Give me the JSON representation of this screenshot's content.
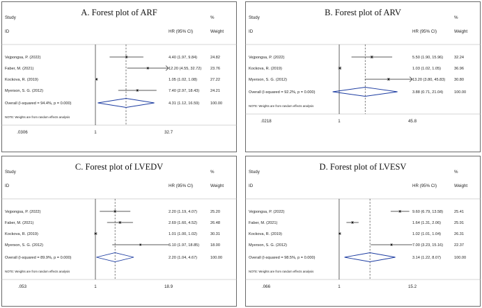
{
  "chart_data": [
    {
      "type": "forest",
      "title": "A. Forest plot of ARF",
      "study_header": "Study",
      "id_header": "ID",
      "ci_header": "HR (95% CI)",
      "pct_header": "%",
      "weight_header": "Weight",
      "note": "NOTE: Weights are from random effects analysis",
      "ticks": [
        ".0306",
        "1",
        "32.7"
      ],
      "xlim": [
        0.0306,
        32.7
      ],
      "studies": [
        {
          "label": "Vejpongsa, P. (2022)",
          "hr": 4.4,
          "lo": 1.97,
          "hi": 9.84,
          "ci_text": "4.40 (1.97, 9.84)",
          "weight": "24.82"
        },
        {
          "label": "Faber, M. (2021)",
          "hr": 12.2,
          "lo": 4.55,
          "hi": 32.72,
          "ci_text": "12.20 (4.55, 32.72)",
          "weight": "23.76"
        },
        {
          "label": "Kockova, R. (2019)",
          "hr": 1.05,
          "lo": 1.02,
          "hi": 1.08,
          "ci_text": "1.05 (1.02, 1.08)",
          "weight": "27.22"
        },
        {
          "label": "Myerson, S. G. (2012)",
          "hr": 7.4,
          "lo": 2.97,
          "hi": 18.43,
          "ci_text": "7.40 (2.97, 18.43)",
          "weight": "24.21"
        }
      ],
      "overall": {
        "label": "Overall  (I-squared = 94.4%, p = 0.000)",
        "hr": 4.31,
        "lo": 1.12,
        "hi": 16.59,
        "ci_text": "4.31 (1.12, 16.59)",
        "weight": "100.00"
      }
    },
    {
      "type": "forest",
      "title": "B. Forest plot of ARV",
      "study_header": "Study",
      "id_header": "ID",
      "ci_header": "HR (95% CI)",
      "pct_header": "%",
      "weight_header": "Weight",
      "note": "NOTE: Weights are from random effects analysis",
      "ticks": [
        ".0218",
        "1",
        "45.8"
      ],
      "xlim": [
        0.0218,
        45.8
      ],
      "studies": [
        {
          "label": "Vejpongsa, P. (2022)",
          "hr": 5.5,
          "lo": 1.9,
          "hi": 15.96,
          "ci_text": "5.50 (1.90, 15.96)",
          "weight": "32.24"
        },
        {
          "label": "Kockova, R. (2019)",
          "hr": 1.03,
          "lo": 1.02,
          "hi": 1.05,
          "ci_text": "1.03 (1.02, 1.05)",
          "weight": "36.96"
        },
        {
          "label": "Myerson, S. G. (2012)",
          "hr": 13.2,
          "lo": 3.8,
          "hi": 45.83,
          "ci_text": "13.20 (3.80, 45.83)",
          "weight": "30.80"
        }
      ],
      "overall": {
        "label": "Overall  (I-squared = 92.2%, p = 0.000)",
        "hr": 3.88,
        "lo": 0.71,
        "hi": 21.04,
        "ci_text": "3.88 (0.71, 21.04)",
        "weight": "100.00"
      }
    },
    {
      "type": "forest",
      "title": "C. Forest plot of LVEDV",
      "study_header": "Study",
      "id_header": "ID",
      "ci_header": "HR (95% CI)",
      "pct_header": "%",
      "weight_header": "Weight",
      "note": "NOTE: Weights are from random effects analysis",
      "ticks": [
        ".053",
        "1",
        "18.9"
      ],
      "xlim": [
        0.053,
        18.9
      ],
      "studies": [
        {
          "label": "Vejpongsa, P. (2022)",
          "hr": 2.2,
          "lo": 1.19,
          "hi": 4.07,
          "ci_text": "2.20 (1.19, 4.07)",
          "weight": "25.20"
        },
        {
          "label": "Faber, M. (2021)",
          "hr": 2.69,
          "lo": 1.6,
          "hi": 4.52,
          "ci_text": "2.69 (1.60, 4.52)",
          "weight": "26.48"
        },
        {
          "label": "Kockova, R. (2019)",
          "hr": 1.01,
          "lo": 1.0,
          "hi": 1.02,
          "ci_text": "1.01 (1.00, 1.02)",
          "weight": "30.31"
        },
        {
          "label": "Myerson, S. G. (2012)",
          "hr": 6.1,
          "lo": 1.97,
          "hi": 18.85,
          "ci_text": "6.10 (1.97, 18.85)",
          "weight": "18.00"
        }
      ],
      "overall": {
        "label": "Overall  (I-squared = 89.9%, p = 0.000)",
        "hr": 2.2,
        "lo": 1.04,
        "hi": 4.67,
        "ci_text": "2.20 (1.04, 4.67)",
        "weight": "100.00"
      }
    },
    {
      "type": "forest",
      "title": "D. Forest plot of LVESV",
      "study_header": "Study",
      "id_header": "ID",
      "ci_header": "HR (95% CI)",
      "pct_header": "%",
      "weight_header": "Weight",
      "note": "NOTE: Weights are from random effects analysis",
      "ticks": [
        ".066",
        "1",
        "15.2"
      ],
      "xlim": [
        0.066,
        15.2
      ],
      "studies": [
        {
          "label": "Vejpongsa, P. (2022)",
          "hr": 9.6,
          "lo": 6.79,
          "hi": 13.58,
          "ci_text": "9.60 (6.79, 13.58)",
          "weight": "25.41"
        },
        {
          "label": "Faber, M. (2021)",
          "hr": 1.64,
          "lo": 1.31,
          "hi": 2.06,
          "ci_text": "1.64 (1.31, 2.06)",
          "weight": "25.91"
        },
        {
          "label": "Kockova, R. (2019)",
          "hr": 1.02,
          "lo": 1.01,
          "hi": 1.04,
          "ci_text": "1.02 (1.01, 1.04)",
          "weight": "26.31"
        },
        {
          "label": "Myerson, S. G. (2012)",
          "hr": 7.0,
          "lo": 3.23,
          "hi": 15.16,
          "ci_text": "7.00 (3.23, 15.16)",
          "weight": "22.37"
        }
      ],
      "overall": {
        "label": "Overall  (I-squared = 98.5%, p = 0.000)",
        "hr": 3.14,
        "lo": 1.22,
        "hi": 8.07,
        "ci_text": "3.14 (1.22, 8.07)",
        "weight": "100.00"
      }
    }
  ]
}
